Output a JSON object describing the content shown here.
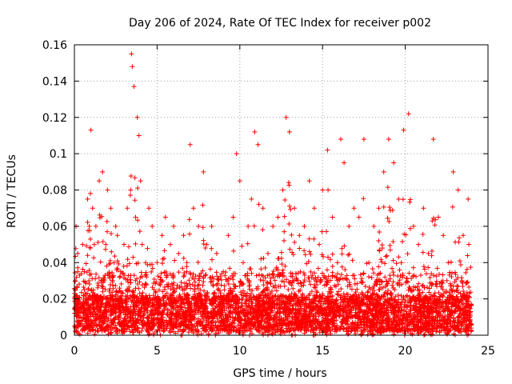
{
  "chart_data": {
    "type": "scatter",
    "title": "Day 206 of 2024, Rate Of TEC Index for receiver p002",
    "xlabel": "GPS time / hours",
    "ylabel": "ROTI / TECUs",
    "xlim": [
      0,
      25
    ],
    "ylim": [
      0,
      0.16
    ],
    "xticks": [
      0,
      5,
      10,
      15,
      20,
      25
    ],
    "yticks": [
      0,
      0.02,
      0.04,
      0.06,
      0.08,
      0.1,
      0.12,
      0.14,
      0.16
    ],
    "xtick_labels": [
      "0",
      "5",
      "10",
      "15",
      "20",
      "25"
    ],
    "ytick_labels": [
      "0",
      "0.02",
      "0.04",
      "0.06",
      "0.08",
      "0.1",
      "0.12",
      "0.14",
      "0.16"
    ],
    "grid": true,
    "marker": "+",
    "marker_color": "#ff0000",
    "series": [
      {
        "name": "ROTI",
        "color": "#ff0000",
        "x": [
          0.05,
          0.1,
          0.15,
          0.2,
          0.3,
          0.4,
          0.5,
          0.6,
          0.7,
          0.8,
          0.9,
          1.0,
          1.1,
          1.2,
          1.3,
          1.5,
          1.7,
          1.8,
          1.9,
          2.0,
          2.2,
          2.4,
          2.5,
          2.6,
          2.8,
          3.0,
          3.2,
          3.4,
          3.45,
          3.5,
          3.6,
          3.7,
          3.8,
          3.9,
          4.0,
          4.1,
          4.3,
          4.5,
          4.7,
          5.0,
          5.3,
          5.5,
          5.8,
          6.0,
          6.3,
          6.6,
          6.8,
          7.0,
          7.2,
          7.5,
          7.8,
          8.0,
          8.3,
          8.6,
          9.0,
          9.3,
          9.6,
          9.8,
          10.0,
          10.2,
          10.5,
          10.7,
          10.9,
          11.1,
          11.4,
          11.7,
          12.0,
          12.3,
          12.6,
          12.8,
          13.0,
          13.3,
          13.6,
          13.9,
          14.2,
          14.5,
          14.8,
          15.0,
          15.3,
          15.6,
          15.9,
          16.1,
          16.3,
          16.6,
          16.9,
          17.2,
          17.5,
          17.8,
          18.1,
          18.4,
          18.7,
          19.0,
          19.3,
          19.6,
          19.9,
          20.2,
          20.5,
          20.8,
          21.1,
          21.4,
          21.7,
          22.0,
          22.3,
          22.6,
          22.9,
          23.2,
          23.5,
          23.8
        ],
        "y": [
          0.03,
          0.06,
          0.02,
          0.045,
          0.015,
          0.01,
          0.05,
          0.035,
          0.02,
          0.075,
          0.06,
          0.113,
          0.07,
          0.05,
          0.06,
          0.085,
          0.09,
          0.03,
          0.05,
          0.08,
          0.07,
          0.04,
          0.06,
          0.055,
          0.035,
          0.05,
          0.07,
          0.08,
          0.155,
          0.148,
          0.137,
          0.065,
          0.12,
          0.11,
          0.085,
          0.05,
          0.04,
          0.07,
          0.06,
          0.04,
          0.055,
          0.065,
          0.05,
          0.06,
          0.045,
          0.055,
          0.04,
          0.105,
          0.07,
          0.06,
          0.09,
          0.05,
          0.06,
          0.045,
          0.035,
          0.055,
          0.065,
          0.1,
          0.085,
          0.04,
          0.06,
          0.075,
          0.112,
          0.105,
          0.07,
          0.045,
          0.06,
          0.065,
          0.08,
          0.12,
          0.112,
          0.07,
          0.055,
          0.06,
          0.085,
          0.07,
          0.05,
          0.08,
          0.102,
          0.065,
          0.04,
          0.108,
          0.095,
          0.06,
          0.07,
          0.065,
          0.108,
          0.04,
          0.06,
          0.07,
          0.09,
          0.108,
          0.095,
          0.075,
          0.113,
          0.122,
          0.06,
          0.05,
          0.07,
          0.045,
          0.108,
          0.065,
          0.055,
          0.04,
          0.09,
          0.08,
          0.055,
          0.075
        ]
      }
    ],
    "background_density": "dense red '+' markers concentrated between 0 and 0.03 TECU/s across 0-24 hours"
  }
}
